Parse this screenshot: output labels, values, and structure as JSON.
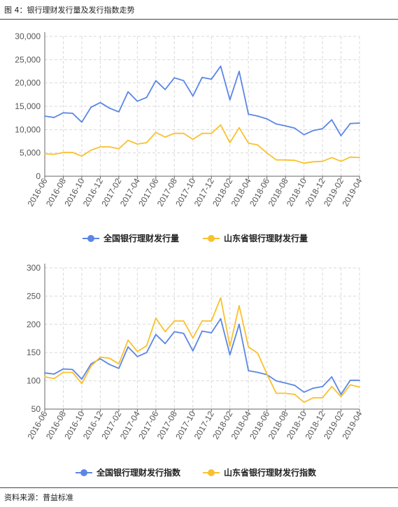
{
  "figure": {
    "title": "图 4：银行理财发行量及发行指数走势",
    "source": "资料来源：普益标准"
  },
  "colors": {
    "national": "#5B86E5",
    "shandong": "#F9C12E",
    "grid": "#d9d9d9",
    "axis": "#666666"
  },
  "chart_data": [
    {
      "type": "line",
      "x": [
        "2016-06",
        "2016-07",
        "2016-08",
        "2016-09",
        "2016-10",
        "2016-11",
        "2016-12",
        "2017-01",
        "2017-02",
        "2017-03",
        "2017-04",
        "2017-05",
        "2017-06",
        "2017-07",
        "2017-08",
        "2017-09",
        "2017-10",
        "2017-11",
        "2017-12",
        "2018-01",
        "2018-02",
        "2018-03",
        "2018-04",
        "2018-05",
        "2018-06",
        "2018-07",
        "2018-08",
        "2018-09",
        "2018-10",
        "2018-11",
        "2018-12",
        "2019-01",
        "2019-02",
        "2019-03",
        "2019-04"
      ],
      "xticks": [
        "2016-06",
        "2016-08",
        "2016-10",
        "2016-12",
        "2017-02",
        "2017-04",
        "2017-06",
        "2017-08",
        "2017-10",
        "2017-12",
        "2018-02",
        "2018-04",
        "2018-06",
        "2018-08",
        "2018-10",
        "2018-12",
        "2019-02",
        "2019-04"
      ],
      "yticks": [
        "0",
        "5,000",
        "10,000",
        "15,000",
        "20,000",
        "25,000",
        "30,000"
      ],
      "ylim": [
        0,
        30000
      ],
      "grid": true,
      "legend_position": "bottom",
      "series": [
        {
          "name": "全国银行理财发行量",
          "color": "#5B86E5",
          "values": [
            12900,
            12600,
            13600,
            13500,
            11600,
            14800,
            15800,
            14600,
            13800,
            18100,
            16100,
            16900,
            20500,
            18600,
            21100,
            20500,
            17200,
            21200,
            20800,
            23600,
            16400,
            22500,
            13300,
            12900,
            12300,
            11200,
            10800,
            10300,
            8900,
            9800,
            10200,
            12100,
            8700,
            11300,
            11400
          ]
        },
        {
          "name": "山东省银行理财发行量",
          "color": "#F9C12E",
          "values": [
            4800,
            4700,
            5100,
            5100,
            4300,
            5600,
            6300,
            6300,
            5900,
            7700,
            6900,
            7200,
            9400,
            8400,
            9200,
            9200,
            7900,
            9200,
            9200,
            11000,
            7200,
            10400,
            7100,
            6700,
            5000,
            3500,
            3500,
            3400,
            2800,
            3100,
            3200,
            4000,
            3200,
            4100,
            4000
          ]
        }
      ]
    },
    {
      "type": "line",
      "x": [
        "2016-06",
        "2016-07",
        "2016-08",
        "2016-09",
        "2016-10",
        "2016-11",
        "2016-12",
        "2017-01",
        "2017-02",
        "2017-03",
        "2017-04",
        "2017-05",
        "2017-06",
        "2017-07",
        "2017-08",
        "2017-09",
        "2017-10",
        "2017-11",
        "2017-12",
        "2018-01",
        "2018-02",
        "2018-03",
        "2018-04",
        "2018-05",
        "2018-06",
        "2018-07",
        "2018-08",
        "2018-09",
        "2018-10",
        "2018-11",
        "2018-12",
        "2019-01",
        "2019-02",
        "2019-03",
        "2019-04"
      ],
      "xticks": [
        "2016-06",
        "2016-08",
        "2016-10",
        "2016-12",
        "2017-02",
        "2017-04",
        "2017-06",
        "2017-08",
        "2017-10",
        "2017-12",
        "2018-02",
        "2018-04",
        "2018-06",
        "2018-08",
        "2018-10",
        "2018-12",
        "2019-02",
        "2019-04"
      ],
      "yticks": [
        "50",
        "100",
        "150",
        "200",
        "250",
        "300"
      ],
      "ylim": [
        50,
        300
      ],
      "grid": true,
      "legend_position": "bottom",
      "series": [
        {
          "name": "全国银行理财发行指数",
          "color": "#5B86E5",
          "values": [
            114,
            112,
            121,
            120,
            103,
            130,
            139,
            129,
            122,
            160,
            143,
            150,
            182,
            166,
            187,
            184,
            153,
            188,
            185,
            210,
            146,
            200,
            118,
            115,
            111,
            100,
            96,
            92,
            80,
            87,
            90,
            107,
            76,
            101,
            101
          ]
        },
        {
          "name": "山东省银行理财发行指数",
          "color": "#F9C12E",
          "values": [
            107,
            104,
            115,
            115,
            95,
            126,
            142,
            140,
            130,
            172,
            152,
            162,
            211,
            187,
            206,
            206,
            176,
            206,
            206,
            247,
            161,
            233,
            160,
            149,
            112,
            78,
            78,
            76,
            62,
            70,
            70,
            90,
            72,
            93,
            89
          ]
        }
      ]
    }
  ]
}
